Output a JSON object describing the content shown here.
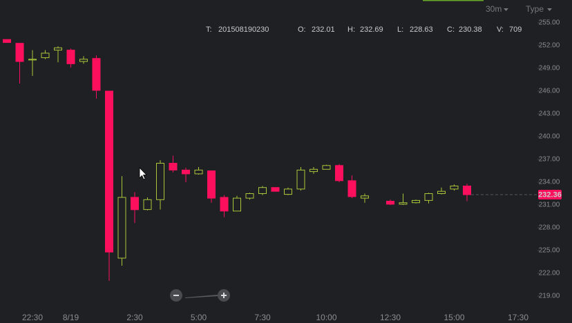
{
  "chart_data": {
    "type": "candlestick",
    "categories": [
      null,
      null,
      "22:30",
      null,
      null,
      "8/19",
      null,
      null,
      null,
      null,
      "2:30",
      null,
      null,
      null,
      null,
      "5:00",
      null,
      null,
      null,
      null,
      "7:30",
      null,
      null,
      null,
      null,
      "10:00",
      null,
      null,
      null,
      null,
      "12:30",
      null,
      null,
      null,
      null,
      "15:00",
      null,
      null,
      null,
      null,
      "17:30"
    ],
    "open": [
      252.8,
      252.3,
      250.1,
      250.4,
      251.4,
      251.4,
      249.9,
      250.3,
      246.0,
      224.0,
      232.01,
      230.4,
      231.7,
      236.5,
      235.6,
      235.1,
      235.5,
      232.0,
      230.2,
      231.9,
      232.5,
      233.3,
      232.4,
      233.1,
      235.4,
      235.7,
      236.2,
      234.2,
      231.9,
      null,
      231.5,
      231.1,
      231.3,
      231.6,
      232.5,
      233.1,
      233.5,
      null,
      null,
      null,
      null
    ],
    "high": [
      252.8,
      252.3,
      251.4,
      251.4,
      251.9,
      251.6,
      250.6,
      250.7,
      246.0,
      234.8,
      232.69,
      232.0,
      236.9,
      237.5,
      235.9,
      236.0,
      235.5,
      232.3,
      232.2,
      232.6,
      233.5,
      233.3,
      233.3,
      236.0,
      236.0,
      236.3,
      236.4,
      234.9,
      232.5,
      null,
      231.7,
      232.5,
      231.7,
      232.6,
      233.3,
      233.7,
      233.8,
      null,
      null,
      null,
      null
    ],
    "low": [
      252.4,
      247.0,
      248.0,
      250.2,
      249.8,
      249.1,
      249.6,
      245.0,
      221.0,
      223.0,
      228.63,
      230.3,
      230.4,
      235.3,
      234.0,
      235.0,
      231.3,
      229.4,
      230.2,
      231.7,
      232.3,
      232.8,
      232.3,
      232.9,
      235.1,
      235.7,
      234.0,
      231.9,
      231.3,
      null,
      231.0,
      231.0,
      231.2,
      231.2,
      232.4,
      232.9,
      231.5,
      null,
      null,
      null,
      null
    ],
    "close": [
      252.4,
      249.9,
      250.2,
      251.0,
      251.7,
      249.6,
      250.2,
      246.1,
      224.8,
      232.0,
      230.38,
      231.7,
      236.5,
      235.6,
      235.1,
      235.6,
      231.9,
      230.2,
      231.9,
      232.5,
      233.3,
      232.8,
      233.1,
      235.6,
      235.7,
      236.2,
      234.2,
      232.1,
      232.2,
      null,
      231.1,
      231.3,
      231.6,
      232.5,
      232.8,
      233.5,
      232.36,
      null,
      null,
      null,
      null
    ],
    "up_color": "#a9c73a",
    "down_color": "#fc0f5c",
    "last_value": 232.36,
    "ylim": [
      217.5,
      258
    ],
    "yticks": [
      {
        "value": 219,
        "label": "219.00"
      },
      {
        "value": 222,
        "label": "222.00"
      },
      {
        "value": 225,
        "label": "225.00"
      },
      {
        "value": 228,
        "label": "228.00"
      },
      {
        "value": 231,
        "label": "231.00"
      },
      {
        "value": 234,
        "label": "234.00"
      },
      {
        "value": 237,
        "label": "237.00"
      },
      {
        "value": 240,
        "label": "240.00"
      },
      {
        "value": 243,
        "label": "243.00"
      },
      {
        "value": 246,
        "label": "246.00"
      },
      {
        "value": 249,
        "label": "249.00"
      },
      {
        "value": 252,
        "label": "252.00"
      },
      {
        "value": 255,
        "label": "255.00"
      }
    ],
    "info": [
      {
        "label": "T:",
        "value": "201508190230"
      },
      {
        "label": "O:",
        "value": 232.01
      },
      {
        "label": "H:",
        "value": 232.69
      },
      {
        "label": "L:",
        "value": 228.63
      },
      {
        "label": "C:",
        "value": 230.38
      },
      {
        "label": "V:",
        "value": 709
      }
    ],
    "interval": "30m",
    "type_menu": "Type"
  }
}
